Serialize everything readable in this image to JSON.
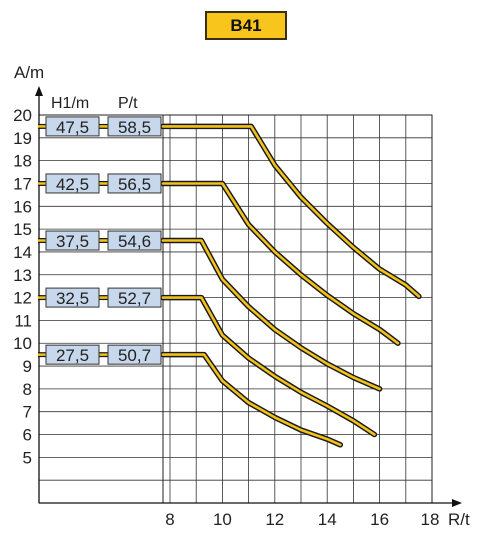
{
  "badge_label": "B41",
  "chart_data": {
    "type": "line",
    "ylabel": "A/m",
    "xlabel": "R/t",
    "table_headers": [
      "H1/m",
      "P/t"
    ],
    "xlim": [
      3,
      18
    ],
    "ylim": [
      3,
      20
    ],
    "xticks": [
      8,
      10,
      12,
      14,
      16,
      18
    ],
    "yticks": [
      5,
      6,
      7,
      8,
      9,
      10,
      11,
      12,
      13,
      14,
      15,
      16,
      17,
      18,
      19,
      20
    ],
    "colors": {
      "curve_fill": "#f2c21b",
      "curve_outline": "#1a1a1a",
      "box_fill": "#c7d7ec",
      "badge": "#f7c51c"
    },
    "series": [
      {
        "h1": "47,5",
        "p": "58,5",
        "label_y": 19.5,
        "points": [
          [
            8,
            19.5
          ],
          [
            11.1,
            19.5
          ],
          [
            12,
            17.8
          ],
          [
            13,
            16.4
          ],
          [
            14,
            15.25
          ],
          [
            15,
            14.2
          ],
          [
            16,
            13.25
          ],
          [
            17,
            12.55
          ],
          [
            17.5,
            12.05
          ]
        ]
      },
      {
        "h1": "42,5",
        "p": "56,5",
        "label_y": 17,
        "points": [
          [
            8,
            17
          ],
          [
            10,
            17
          ],
          [
            11,
            15.2
          ],
          [
            12,
            14.0
          ],
          [
            13,
            13.0
          ],
          [
            14,
            12.1
          ],
          [
            15,
            11.3
          ],
          [
            16,
            10.6
          ],
          [
            16.7,
            10.0
          ]
        ]
      },
      {
        "h1": "37,5",
        "p": "54,6",
        "label_y": 14.5,
        "points": [
          [
            8,
            14.5
          ],
          [
            9.2,
            14.5
          ],
          [
            10,
            12.8
          ],
          [
            11,
            11.6
          ],
          [
            12,
            10.6
          ],
          [
            13,
            9.8
          ],
          [
            14,
            9.1
          ],
          [
            15,
            8.5
          ],
          [
            16,
            8.0
          ]
        ]
      },
      {
        "h1": "32,5",
        "p": "52,7",
        "label_y": 12,
        "points": [
          [
            8,
            12
          ],
          [
            9.2,
            12
          ],
          [
            10,
            10.35
          ],
          [
            11,
            9.35
          ],
          [
            12,
            8.55
          ],
          [
            13,
            7.85
          ],
          [
            14,
            7.25
          ],
          [
            15,
            6.6
          ],
          [
            15.8,
            6.0
          ]
        ]
      },
      {
        "h1": "27,5",
        "p": "50,7",
        "label_y": 9.5,
        "points": [
          [
            8,
            9.5
          ],
          [
            9.3,
            9.5
          ],
          [
            10,
            8.35
          ],
          [
            11,
            7.4
          ],
          [
            12,
            6.75
          ],
          [
            13,
            6.2
          ],
          [
            14,
            5.8
          ],
          [
            14.5,
            5.55
          ]
        ]
      }
    ]
  }
}
